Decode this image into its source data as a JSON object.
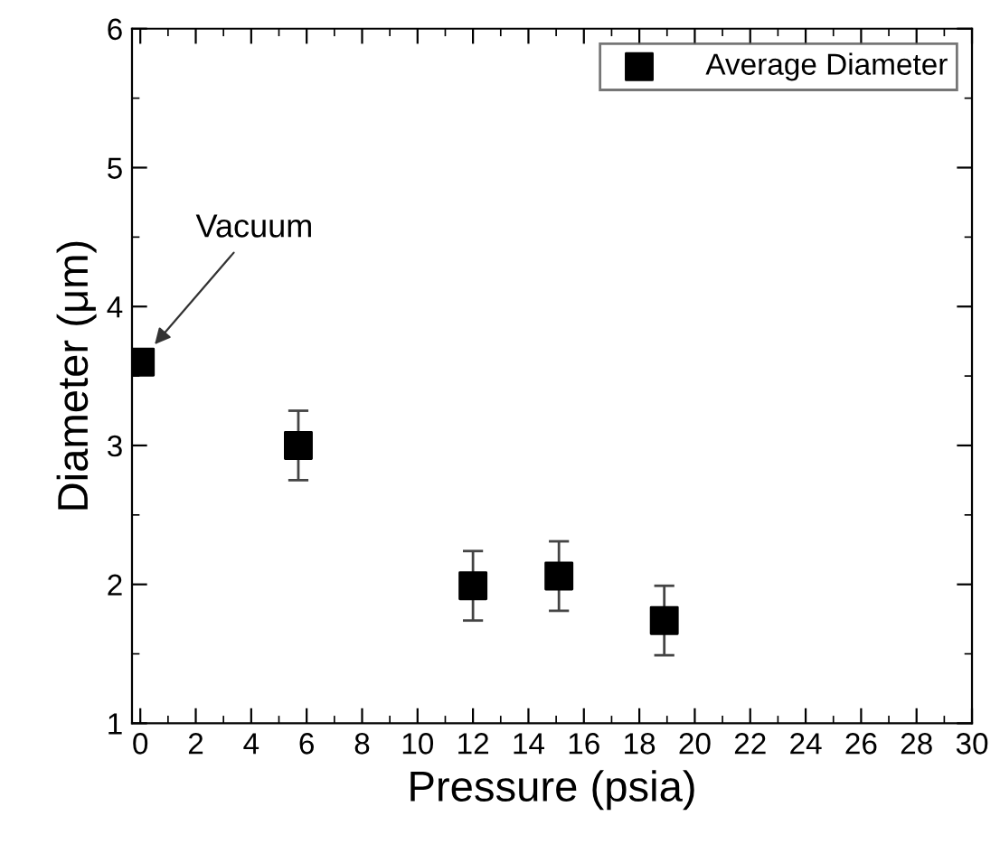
{
  "chart_data": {
    "type": "scatter",
    "xlabel": "Pressure (psia)",
    "ylabel": "Diameter (μm)",
    "x": [
      0,
      5.7,
      12,
      15.1,
      18.9
    ],
    "series": [
      {
        "name": "Average Diameter",
        "color": "#000000",
        "values": [
          3.6,
          3.0,
          1.99,
          2.06,
          1.74
        ],
        "errors": [
          null,
          0.25,
          0.25,
          0.25,
          0.25
        ]
      }
    ],
    "xlim": [
      -0.3,
      30
    ],
    "ylim": [
      1,
      6
    ],
    "xticks": [
      0,
      2,
      4,
      6,
      8,
      10,
      12,
      14,
      16,
      18,
      20,
      22,
      24,
      26,
      28,
      30
    ],
    "yticks": [
      1,
      2,
      3,
      4,
      5,
      6
    ],
    "annotations": [
      {
        "text": "Vacuum",
        "x": 0.4,
        "y": 3.7
      }
    ],
    "marker": "square",
    "legend": "top right",
    "grid": false
  }
}
